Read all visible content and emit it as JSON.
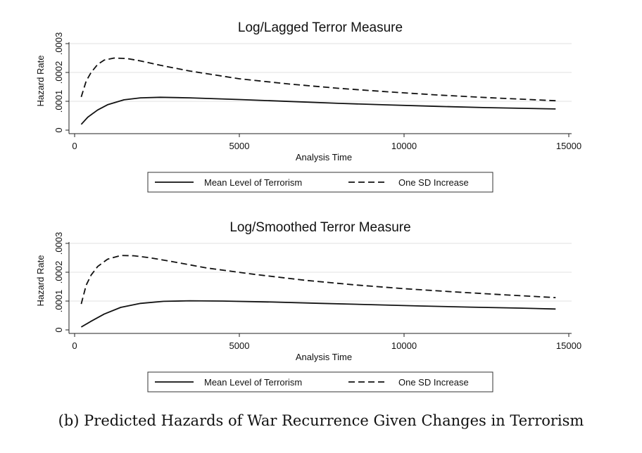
{
  "caption": "(b) Predicted Hazards of War Recurrence Given Changes in Terrorism",
  "chart_data": [
    {
      "type": "line",
      "title": "Log/Lagged Terror Measure",
      "xlabel": "Analysis Time",
      "ylabel": "Hazard Rate",
      "xlim": [
        0,
        15000
      ],
      "ylim": [
        0,
        0.0003
      ],
      "xticks": [
        "0",
        "5000",
        "10000",
        "15000"
      ],
      "yticks": [
        "0",
        ".0001",
        ".0002",
        ".0003"
      ],
      "grid": true,
      "legend": "bottom",
      "series": [
        {
          "name": "Mean Level of Terrorism",
          "style": "solid",
          "x": [
            200,
            400,
            700,
            1000,
            1500,
            2000,
            2600,
            3500,
            5000,
            6500,
            8000,
            9500,
            11000,
            12500,
            14600
          ],
          "y": [
            2e-05,
            4.5e-05,
            7e-05,
            8.8e-05,
            0.000105,
            0.000112,
            0.000114,
            0.000112,
            0.000106,
            9.95e-05,
            9.3e-05,
            8.75e-05,
            8.25e-05,
            7.8e-05,
            7.35e-05
          ]
        },
        {
          "name": "One SD Increase",
          "style": "dashed",
          "x": [
            200,
            350,
            500,
            700,
            900,
            1200,
            1600,
            2000,
            2600,
            3500,
            5000,
            6500,
            8000,
            9500,
            11000,
            12500,
            14600
          ],
          "y": [
            0.000115,
            0.00017,
            0.0002,
            0.000228,
            0.000243,
            0.00025,
            0.000248,
            0.00024,
            0.000225,
            0.000205,
            0.000178,
            0.00016,
            0.000145,
            0.000133,
            0.000122,
            0.000113,
            0.000102
          ]
        }
      ]
    },
    {
      "type": "line",
      "title": "Log/Smoothed Terror Measure",
      "xlabel": "Analysis Time",
      "ylabel": "Hazard Rate",
      "xlim": [
        0,
        15000
      ],
      "ylim": [
        0,
        0.0003
      ],
      "xticks": [
        "0",
        "5000",
        "10000",
        "15000"
      ],
      "yticks": [
        "0",
        ".0001",
        ".0002",
        ".0003"
      ],
      "grid": true,
      "legend": "bottom",
      "series": [
        {
          "name": "Mean Level of Terrorism",
          "style": "solid",
          "x": [
            200,
            500,
            900,
            1400,
            2000,
            2700,
            3500,
            4500,
            6000,
            7500,
            9000,
            10500,
            12000,
            13500,
            14600
          ],
          "y": [
            1e-05,
            3e-05,
            5.5e-05,
            7.8e-05,
            9.2e-05,
            9.9e-05,
            0.000101,
            0.0001,
            9.65e-05,
            9.2e-05,
            8.75e-05,
            8.3e-05,
            7.9e-05,
            7.55e-05,
            7.25e-05
          ]
        },
        {
          "name": "One SD Increase",
          "style": "dashed",
          "x": [
            200,
            350,
            500,
            700,
            1000,
            1400,
            1800,
            2300,
            3000,
            4000,
            5500,
            7000,
            8500,
            10000,
            11500,
            13000,
            14600
          ],
          "y": [
            9e-05,
            0.000155,
            0.00019,
            0.00022,
            0.000245,
            0.000258,
            0.000257,
            0.00025,
            0.000236,
            0.000215,
            0.000192,
            0.000172,
            0.000156,
            0.000143,
            0.000132,
            0.000122,
            0.000112
          ]
        }
      ]
    }
  ]
}
